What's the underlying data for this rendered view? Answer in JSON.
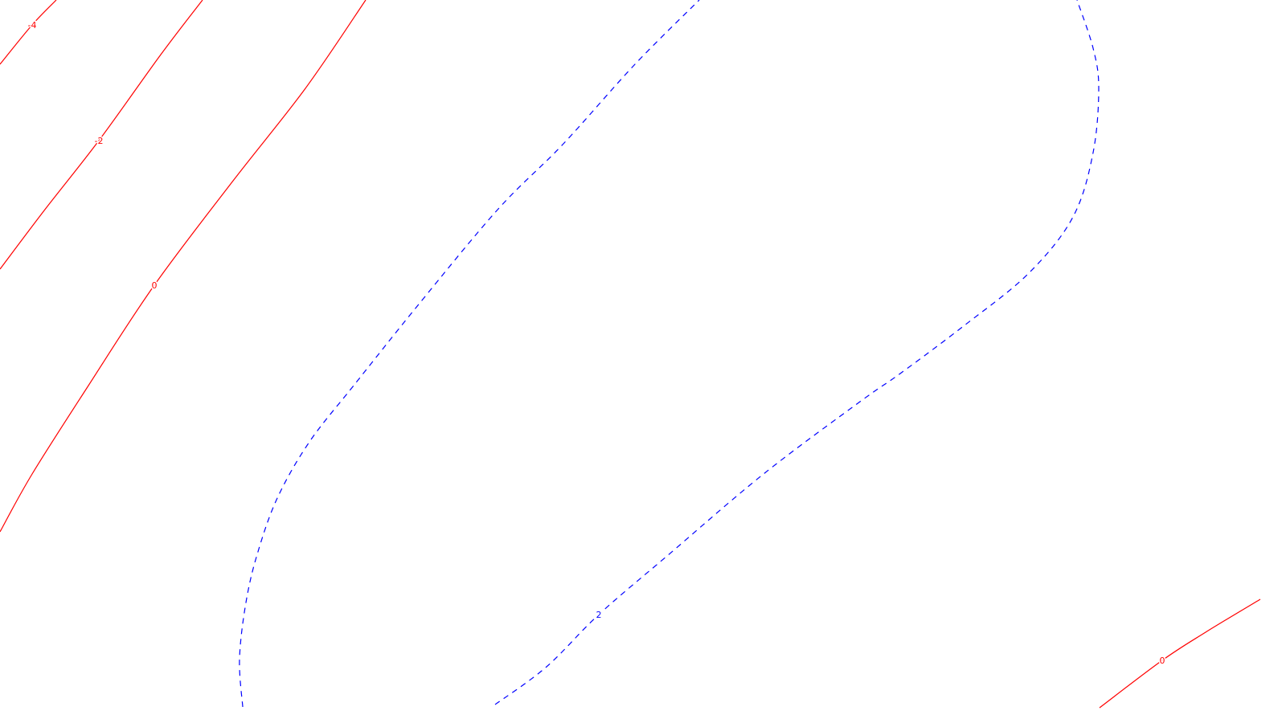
{
  "chart_data": {
    "type": "contour",
    "title": "",
    "xlabel": "",
    "ylabel": "",
    "grid": false,
    "legend": "none",
    "colors": {
      "background": "#ffffff",
      "negative_or_zero": "#ff0000",
      "positive": "#0000ff"
    },
    "series": [
      {
        "level": -4,
        "label": "-4",
        "style": "solid",
        "color": "#ff0000",
        "points": [
          [
            0,
            80
          ],
          [
            40,
            31
          ],
          [
            70,
            0
          ]
        ]
      },
      {
        "level": -2,
        "label": "-2",
        "style": "solid",
        "color": "#ff0000",
        "points": [
          [
            0,
            335
          ],
          [
            55,
            262
          ],
          [
            123,
            175
          ],
          [
            200,
            68
          ],
          [
            252,
            0
          ]
        ]
      },
      {
        "level": 0,
        "label": "0",
        "style": "solid",
        "color": "#ff0000",
        "points": [
          [
            0,
            662
          ],
          [
            40,
            590
          ],
          [
            110,
            480
          ],
          [
            192,
            355
          ],
          [
            290,
            225
          ],
          [
            380,
            110
          ],
          [
            455,
            0
          ]
        ]
      },
      {
        "level": 2,
        "label": "2",
        "style": "dashed",
        "color": "#0000ff",
        "points": [
          [
            302,
            880
          ],
          [
            298,
            820
          ],
          [
            306,
            750
          ],
          [
            320,
            690
          ],
          [
            345,
            620
          ],
          [
            385,
            550
          ],
          [
            440,
            480
          ],
          [
            520,
            380
          ],
          [
            620,
            260
          ],
          [
            700,
            180
          ],
          [
            790,
            80
          ],
          [
            870,
            0
          ]
        ]
      },
      {
        "level": 2,
        "label": "2",
        "style": "dashed",
        "color": "#0000ff",
        "points": [
          [
            616,
            877
          ],
          [
            680,
            830
          ],
          [
            745,
            765
          ],
          [
            830,
            692
          ],
          [
            950,
            590
          ],
          [
            1070,
            500
          ],
          [
            1120,
            465
          ],
          [
            1200,
            405
          ],
          [
            1280,
            340
          ],
          [
            1335,
            270
          ],
          [
            1360,
            190
          ],
          [
            1367,
            110
          ],
          [
            1360,
            60
          ],
          [
            1340,
            0
          ]
        ]
      },
      {
        "level": 0,
        "label": "0",
        "style": "solid",
        "color": "#ff0000",
        "points": [
          [
            1368,
            881
          ],
          [
            1446,
            822
          ],
          [
            1500,
            787
          ],
          [
            1568,
            746
          ]
        ]
      }
    ],
    "labels": [
      {
        "text": "-4",
        "x": 40,
        "y": 31,
        "color": "#ff0000"
      },
      {
        "text": "-2",
        "x": 123,
        "y": 175,
        "color": "#ff0000"
      },
      {
        "text": "0",
        "x": 192,
        "y": 355,
        "color": "#ff0000"
      },
      {
        "text": "2",
        "x": 745,
        "y": 765,
        "color": "#0000ff"
      },
      {
        "text": "0",
        "x": 1446,
        "y": 822,
        "color": "#ff0000"
      }
    ]
  }
}
